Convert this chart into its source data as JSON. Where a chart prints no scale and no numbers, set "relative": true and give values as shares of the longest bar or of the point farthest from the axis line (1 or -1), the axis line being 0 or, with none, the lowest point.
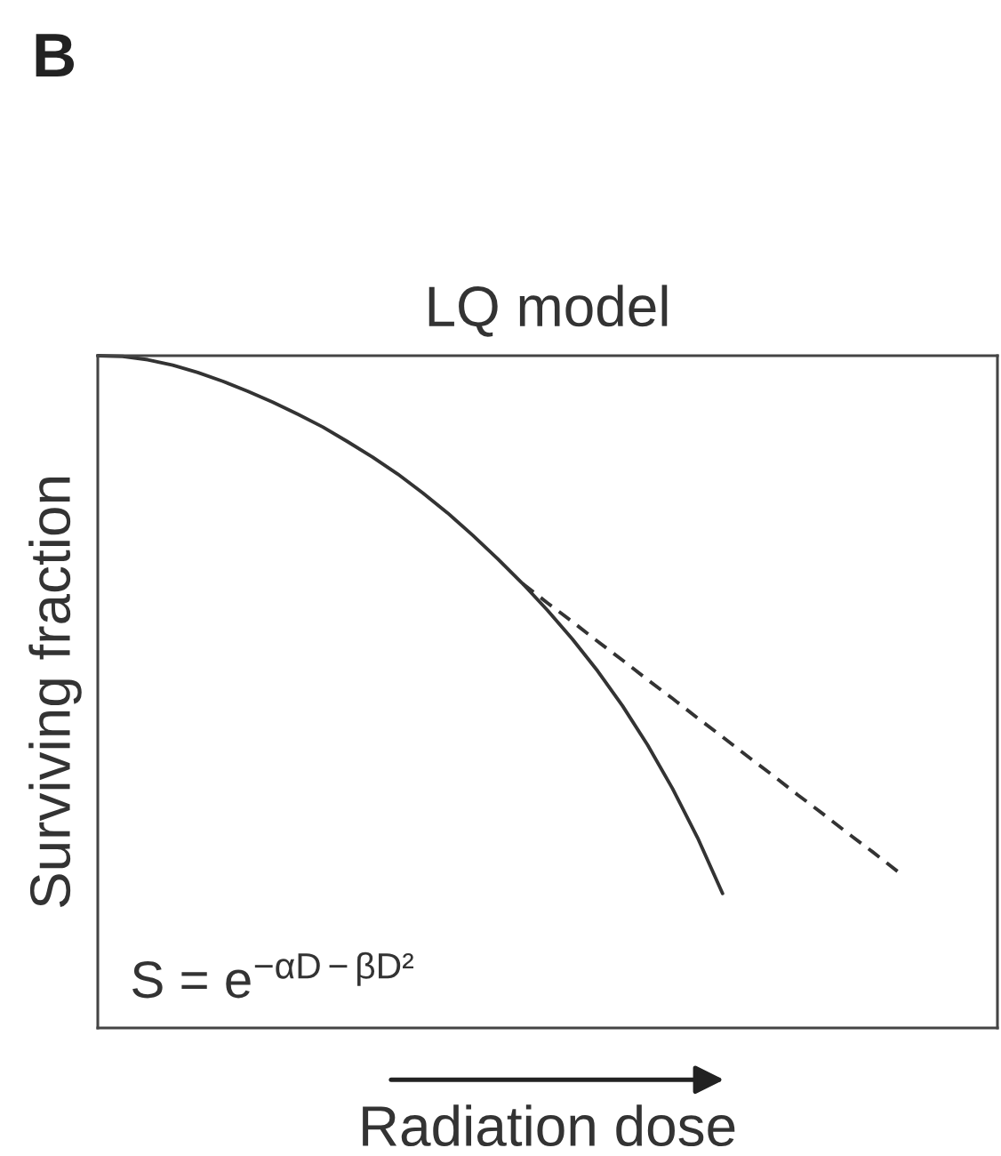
{
  "chart_data": {
    "type": "line",
    "title": "LQ model",
    "xlabel": "Radiation dose",
    "ylabel": "Surviving fraction",
    "relative": true,
    "categories": [
      null,
      null,
      null,
      null,
      null,
      null,
      null,
      null,
      null,
      null,
      null,
      null,
      null,
      null,
      null,
      null,
      null,
      null,
      null,
      null,
      null,
      null,
      null,
      null,
      null,
      null,
      null,
      null,
      null,
      null,
      null,
      null,
      null,
      null,
      null,
      null,
      null
    ],
    "series": [
      {
        "color": "#333333",
        "line_style": "solid",
        "values": [
          1.0,
          0.999,
          0.994,
          0.986,
          0.975,
          0.962,
          0.947,
          0.931,
          0.913,
          0.894,
          0.872,
          0.849,
          0.824,
          0.796,
          0.766,
          0.733,
          0.698,
          0.661,
          0.621,
          0.578,
          0.531,
          0.479,
          0.421,
          0.356,
          0.283,
          0.2,
          null,
          null,
          null,
          null,
          null,
          null,
          null,
          null,
          null,
          null,
          null
        ]
      },
      {
        "color": "#333333",
        "line_style": "dashed",
        "values": [
          null,
          null,
          null,
          null,
          null,
          null,
          null,
          null,
          null,
          null,
          null,
          null,
          null,
          null,
          null,
          null,
          null,
          0.661,
          0.632,
          0.604,
          0.575,
          0.547,
          0.518,
          0.49,
          0.461,
          0.433,
          0.404,
          0.376,
          0.347,
          0.319,
          0.29,
          0.262,
          0.233,
          null,
          null,
          null,
          null
        ]
      }
    ],
    "annotations": [
      "B",
      "S = e$^{−αD−βD²}$"
    ]
  }
}
